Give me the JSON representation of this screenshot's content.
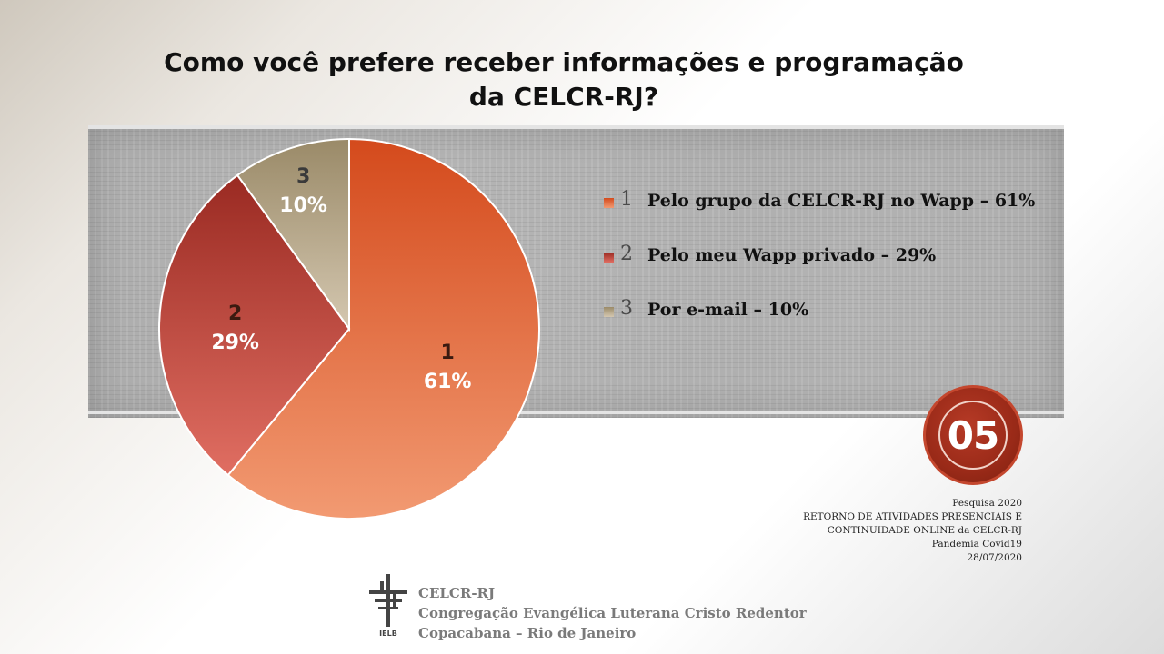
{
  "title": {
    "line1": "Como você prefere receber informações e programação",
    "line2": "da CELCR-RJ?"
  },
  "chart_data": {
    "type": "pie",
    "categories": [
      "1",
      "2",
      "3"
    ],
    "values": [
      61,
      29,
      10
    ],
    "data_labels": [
      "61%",
      "29%",
      "10%"
    ],
    "legend_position": "right",
    "legend": [
      {
        "num": "1",
        "label": "Pelo grupo da CELCR-RJ no Wapp – 61%",
        "color": "#e2603a"
      },
      {
        "num": "2",
        "label": "Pelo meu Wapp privado – 29%",
        "color": "#b5443a"
      },
      {
        "num": "3",
        "label": "Por e-mail – 10%",
        "color": "#a89a7e"
      }
    ],
    "colors": [
      {
        "top": "#d44a1c",
        "bottom": "#f29a72"
      },
      {
        "top": "#9a2a22",
        "bottom": "#e06e62"
      },
      {
        "top": "#9a8a68",
        "bottom": "#d4c7b0"
      }
    ]
  },
  "badge": {
    "number": "05",
    "color": "#a8311e"
  },
  "meta": {
    "line1": "Pesquisa 2020",
    "line2": "RETORNO DE ATIVIDADES PRESENCIAIS E",
    "line3": "CONTINUIDADE ONLINE da CELCR-RJ",
    "line4": "Pandemia Covid19",
    "line5": "28/07/2020"
  },
  "footer": {
    "line1": "CELCR-RJ",
    "line2": "Congregação Evangélica Luterana Cristo Redentor",
    "line3": "Copacabana – Rio de Janeiro"
  },
  "logo": {
    "text": "IELB",
    "icon": "cross-logo-icon"
  }
}
